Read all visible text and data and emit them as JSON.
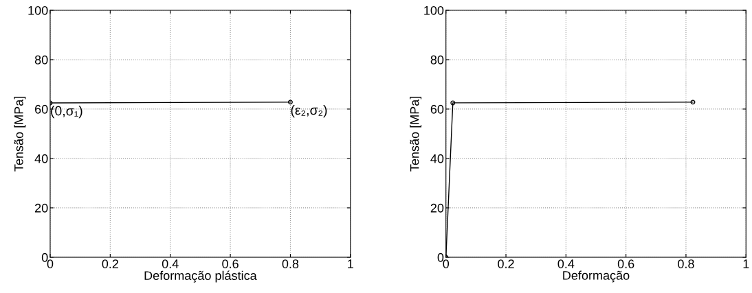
{
  "chart_data": [
    {
      "type": "line",
      "xlabel": "Deformação plástica",
      "ylabel": "Tensão [MPa]",
      "x": [
        0,
        0.8
      ],
      "series": [
        {
          "color": "#000000",
          "values": [
            62.5,
            62.8
          ]
        }
      ],
      "xlim": [
        0,
        1
      ],
      "ylim": [
        0,
        100
      ],
      "xticks": [
        0,
        0.2,
        0.4,
        0.6,
        0.8,
        1
      ],
      "yticks": [
        0,
        20,
        40,
        60,
        80,
        100
      ],
      "grid": true,
      "marker": "circle",
      "line_style": "solid",
      "annotations": [
        {
          "text": "(0,σ₁)",
          "x": 0,
          "y": 62.5
        },
        {
          "text": "(ε₂,σ₂)",
          "x": 0.8,
          "y": 62.8
        }
      ]
    },
    {
      "type": "line",
      "xlabel": "Deformação",
      "ylabel": "Tensão [MPa]",
      "x": [
        0,
        0.023,
        0.823
      ],
      "series": [
        {
          "color": "#000000",
          "values": [
            0,
            62.5,
            62.8
          ]
        }
      ],
      "xlim": [
        0,
        1
      ],
      "ylim": [
        0,
        100
      ],
      "xticks": [
        0,
        0.2,
        0.4,
        0.6,
        0.8,
        1
      ],
      "yticks": [
        0,
        20,
        40,
        60,
        80,
        100
      ],
      "grid": true,
      "marker": "circle",
      "line_style": "solid"
    }
  ]
}
